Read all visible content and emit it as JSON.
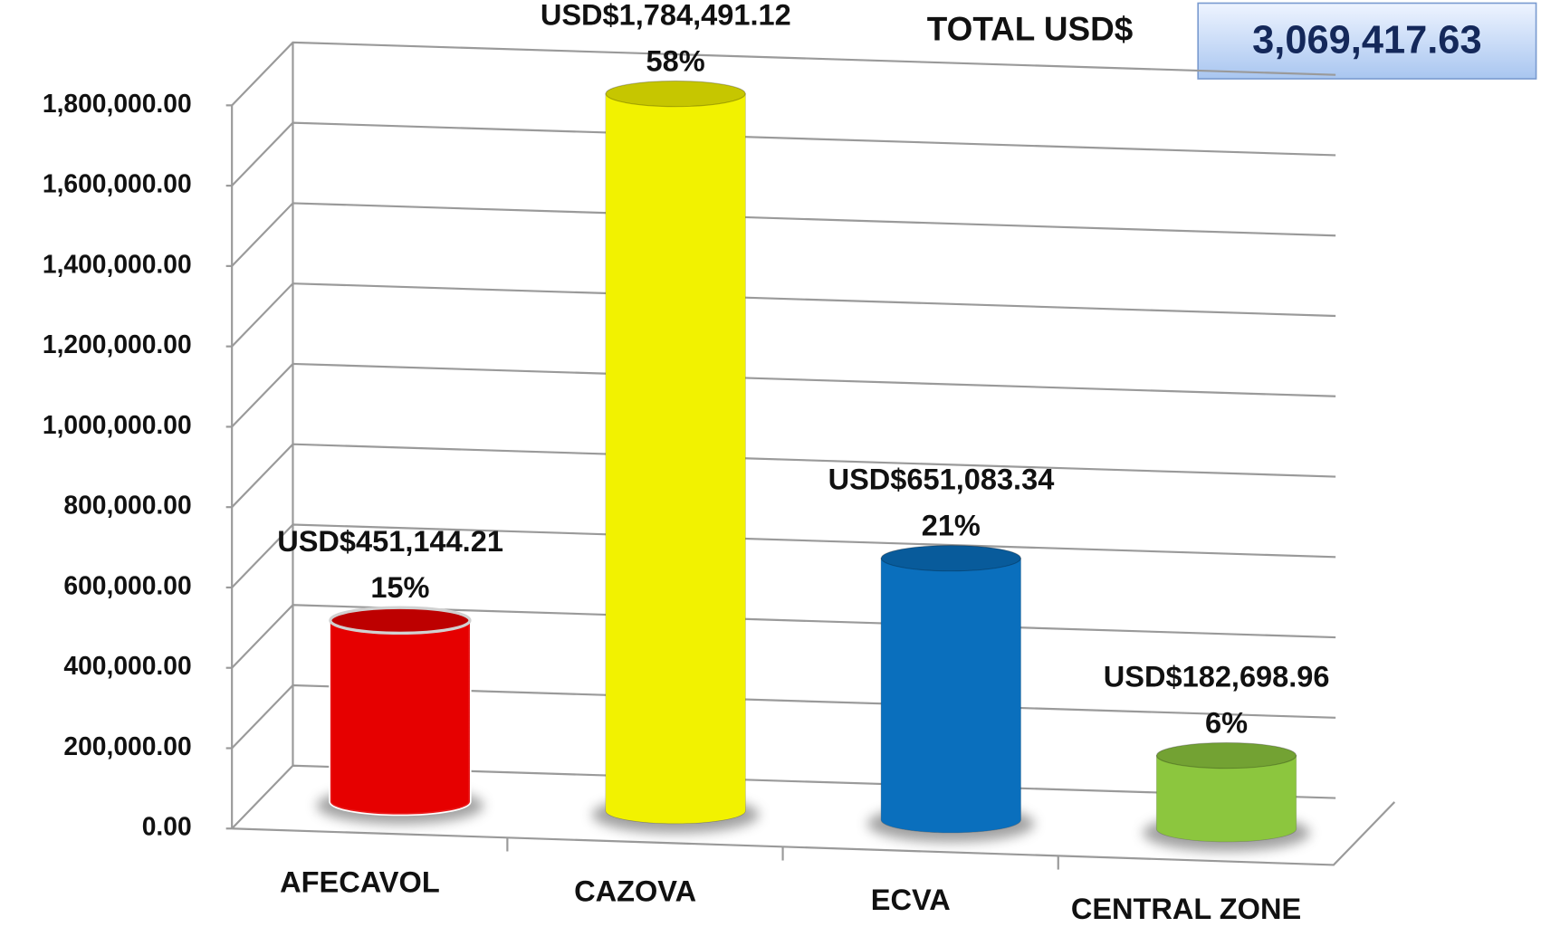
{
  "chart_data": {
    "type": "bar",
    "categories": [
      "AFECAVOL",
      "CAZOVA",
      "ECVA",
      "CENTRAL ZONE"
    ],
    "values": [
      451144.21,
      1784491.12,
      651083.34,
      182698.96
    ],
    "value_labels": [
      "USD$451,144.21",
      "USD$1,784,491.12",
      "USD$651,083.34",
      "USD$182,698.96"
    ],
    "percent_labels": [
      "15%",
      "58%",
      "21%",
      "6%"
    ],
    "colors": [
      "#e60000",
      "#f2f200",
      "#0a6fbd",
      "#8cc63e"
    ],
    "ylim": [
      0,
      1800000
    ],
    "yticks": [
      {
        "value": 0,
        "label": "0.00"
      },
      {
        "value": 200000,
        "label": "200,000.00"
      },
      {
        "value": 400000,
        "label": "400,000.00"
      },
      {
        "value": 600000,
        "label": "600,000.00"
      },
      {
        "value": 800000,
        "label": "800,000.00"
      },
      {
        "value": 1000000,
        "label": "1,000,000.00"
      },
      {
        "value": 1200000,
        "label": "1,200,000.00"
      },
      {
        "value": 1400000,
        "label": "1,400,000.00"
      },
      {
        "value": 1600000,
        "label": "1,600,000.00"
      },
      {
        "value": 1800000,
        "label": "1,800,000.00"
      }
    ],
    "grid": true,
    "total_label": "TOTAL USD$",
    "total_value": "3,069,417.63"
  }
}
